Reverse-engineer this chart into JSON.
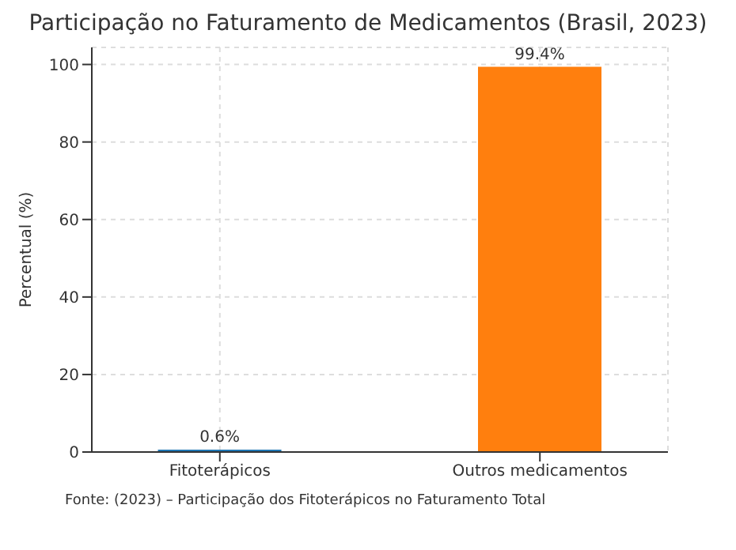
{
  "chart_data": {
    "type": "bar",
    "title": "Participação no Faturamento de Medicamentos (Brasil, 2023)",
    "ylabel": "Percentual (%)",
    "categories": [
      "Fitoterápicos",
      "Outros medicamentos"
    ],
    "values": [
      0.6,
      99.4
    ],
    "colors": [
      "#1f77b4",
      "#ff7f0e"
    ],
    "value_labels": [
      "0.6%",
      "99.4%"
    ],
    "ylim": [
      0,
      104.4
    ],
    "yticks": [
      0,
      20,
      40,
      60,
      80,
      100
    ],
    "grid": true,
    "annotations": [
      "Fonte: (2023) – Participação dos Fitoterápicos no Faturamento Total"
    ]
  }
}
